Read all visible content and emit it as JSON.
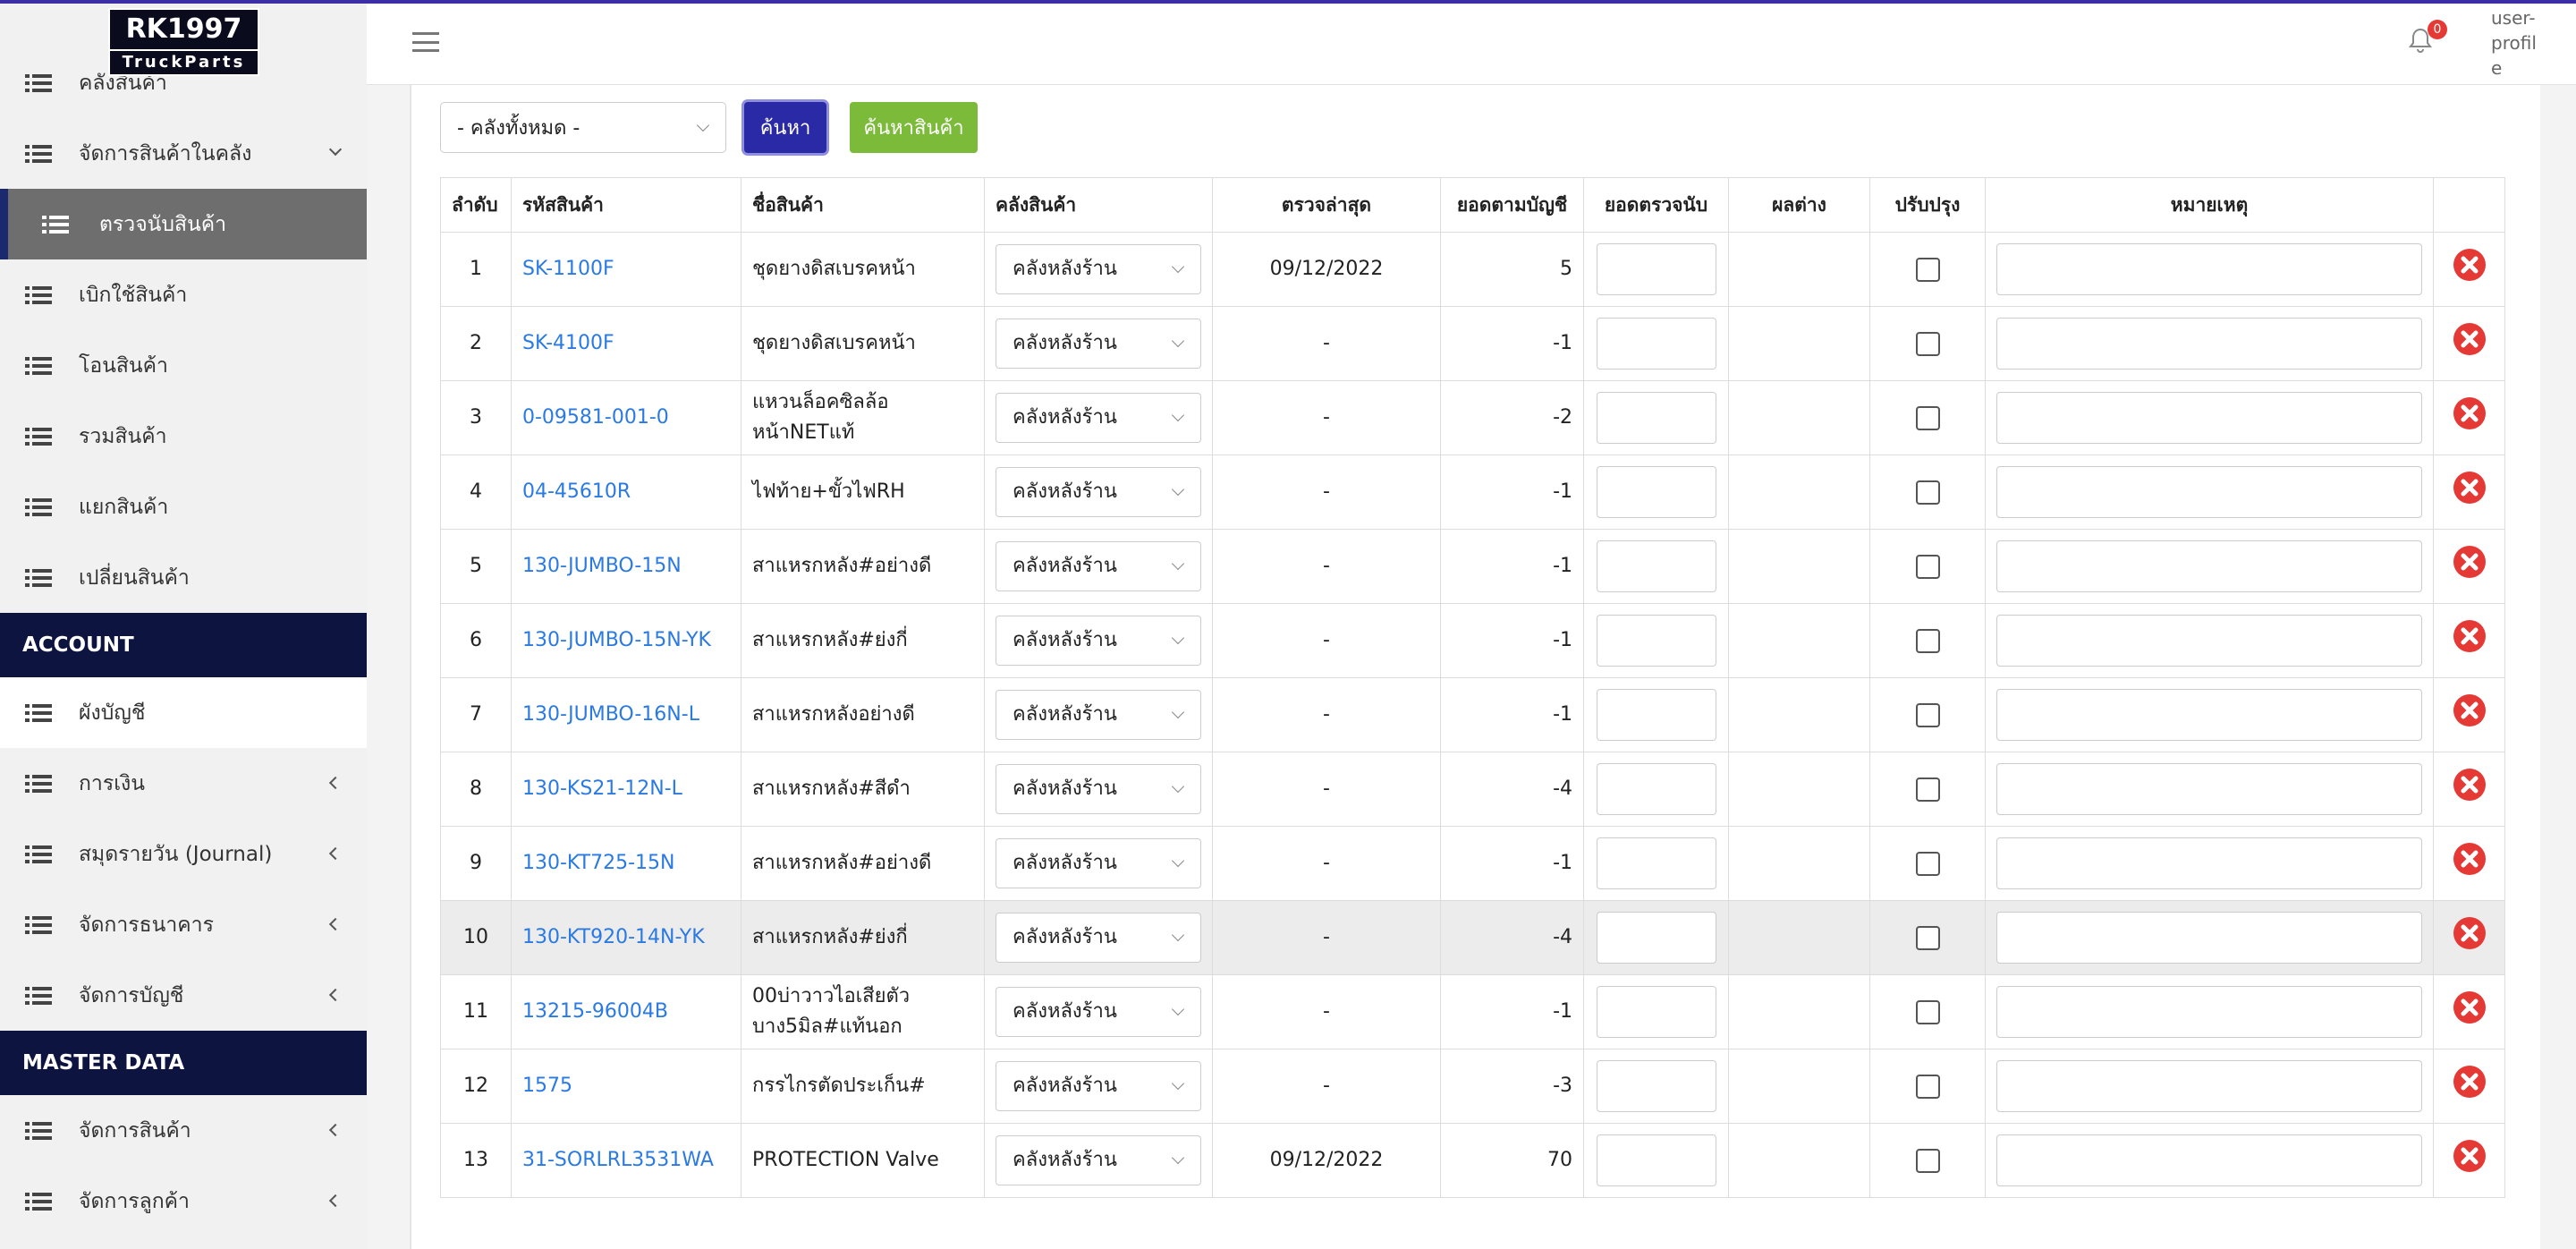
{
  "logo": {
    "title": "RK1997",
    "subtitle": "TruckParts"
  },
  "header": {
    "notification_count": 0,
    "avatar_alt": "user-profile"
  },
  "sidebar": {
    "groups": [
      {
        "items": [
          "คลังสินค้า",
          "จัดการสินค้าในคลัง",
          "ตรวจนับสินค้า",
          "เบิกใช้สินค้า",
          "โอนสินค้า",
          "รวมสินค้า",
          "แยกสินค้า",
          "เปลี่ยนสินค้า"
        ]
      },
      {
        "heading": "ACCOUNT",
        "items": [
          "ผังบัญชี",
          "การเงิน",
          "สมุดรายวัน (Journal)",
          "จัดการธนาคาร",
          "จัดการบัญชี"
        ]
      },
      {
        "heading": "MASTER DATA",
        "items": [
          "จัดการสินค้า",
          "จัดการลูกค้า"
        ]
      }
    ]
  },
  "filter": {
    "warehouse_select": "- คลังทั้งหมด -",
    "search_button": "ค้นหา",
    "product_search_button": "ค้นหาสินค้า"
  },
  "table": {
    "columns": [
      "ลำดับ",
      "รหัสสินค้า",
      "ชื่อสินค้า",
      "คลังสินค้า",
      "ตรวจล่าสุด",
      "ยอดตามบัญชี",
      "ยอดตรวจนับ",
      "ผลต่าง",
      "ปรับปรุง",
      "หมายเหตุ"
    ],
    "rows": [
      [
        1,
        "SK-1100F",
        "ชุดยางดิสเบรคหน้า",
        "คลังหลังร้าน",
        "09/12/2022",
        5
      ],
      [
        2,
        "SK-4100F",
        "ชุดยางดิสเบรคหน้า",
        "คลังหลังร้าน",
        "-",
        -1
      ],
      [
        3,
        "0-09581-001-0",
        "แหวนล็อคซิลล้อหน้าNETแท้",
        "คลังหลังร้าน",
        "-",
        -2
      ],
      [
        4,
        "04-45610R",
        "ไฟท้าย+ขั้วไฟRH",
        "คลังหลังร้าน",
        "-",
        -1
      ],
      [
        5,
        "130-JUMBO-15N",
        "สาแหรกหลัง#อย่างดี",
        "คลังหลังร้าน",
        "-",
        -1
      ],
      [
        6,
        "130-JUMBO-15N-YK",
        "สาแหรกหลัง#ย่งกี่",
        "คลังหลังร้าน",
        "-",
        -1
      ],
      [
        7,
        "130-JUMBO-16N-L",
        "สาแหรกหลังอย่างดี",
        "คลังหลังร้าน",
        "-",
        -1
      ],
      [
        8,
        "130-KS21-12N-L",
        "สาแหรกหลัง#สีดำ",
        "คลังหลังร้าน",
        "-",
        -4
      ],
      [
        9,
        "130-KT725-15N",
        "สาแหรกหลัง#อย่างดี",
        "คลังหลังร้าน",
        "-",
        -1
      ],
      [
        10,
        "130-KT920-14N-YK",
        "สาแหรกหลัง#ย่งกี่",
        "คลังหลังร้าน",
        "-",
        -4
      ],
      [
        11,
        "13215-96004B",
        "00บ่าวาวไอเสียตัวบาง5มิล#แท้นอก",
        "คลังหลังร้าน",
        "-",
        -1
      ],
      [
        12,
        "1575",
        "กรรไกรตัดประเก็น#",
        "คลังหลังร้าน",
        "-",
        -3
      ],
      [
        13,
        "31-SORLRL3531WA",
        "PROTECTION Valve",
        "คลังหลังร้าน",
        "09/12/2022",
        70
      ]
    ]
  }
}
